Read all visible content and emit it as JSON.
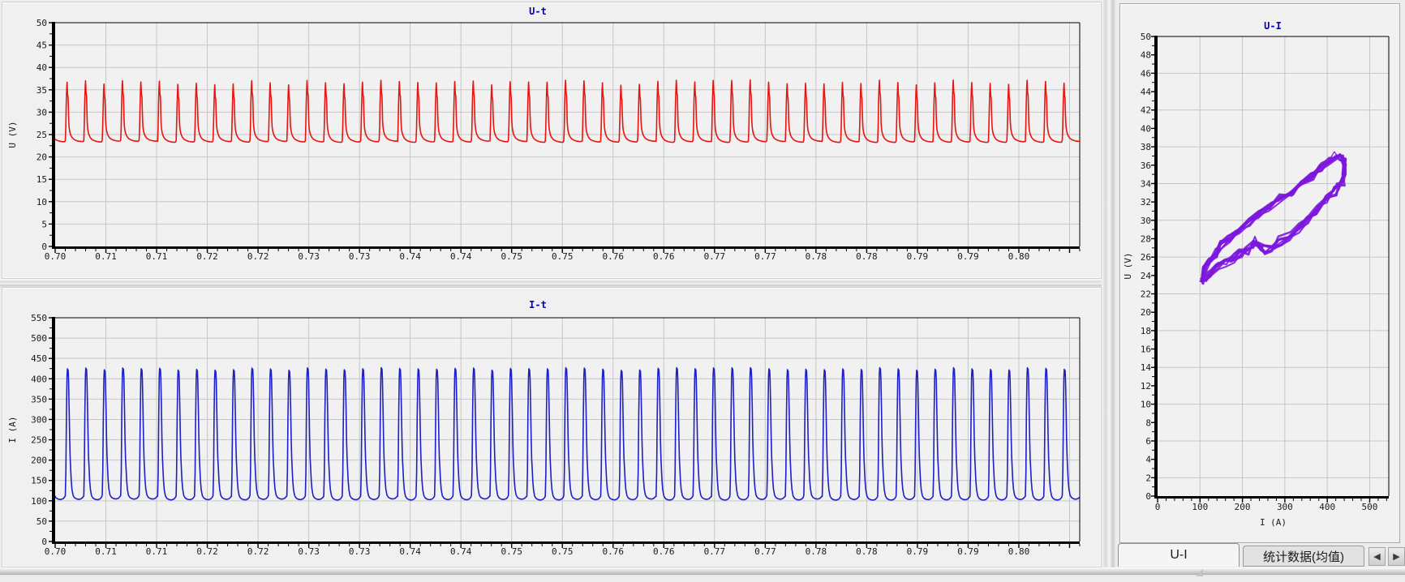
{
  "colors": {
    "window_bg": "#ececec",
    "plot_bg": "#f1f1f1",
    "grid": "#c6c6c6",
    "axis": "#000000",
    "tick_text": "#1a1a1a",
    "title_text": "#0000c8",
    "ut_line": "#e8140f",
    "it_line": "#1f1fc8",
    "ui_line": "#7d17de"
  },
  "tabs": {
    "items": [
      {
        "label": "U-I",
        "active": true
      },
      {
        "label": "统计数据(均值)",
        "active": false
      }
    ],
    "scroll_left_glyph": "◀",
    "scroll_right_glyph": "▶"
  },
  "chart_data": [
    {
      "id": "ut",
      "type": "line",
      "title": "U-t",
      "ylabel": "U (V)",
      "color": "#e8140f",
      "x_range": [
        0.7,
        0.801
      ],
      "x_major_step": 0.005,
      "x_minor_step": 0.001,
      "x_tick_labels": [
        "0.70",
        "0.71",
        "0.71",
        "0.72",
        "0.72",
        "0.73",
        "0.73",
        "0.74",
        "0.74",
        "0.75",
        "0.75",
        "0.76",
        "0.76",
        "0.77",
        "0.77",
        "0.78",
        "0.78",
        "0.79",
        "0.79",
        "0.80"
      ],
      "ylim": [
        0,
        50
      ],
      "y_tick_step": 5,
      "y_minor_step": 2.5,
      "y_tick_labels": [
        "0",
        "5",
        "10",
        "15",
        "20",
        "25",
        "30",
        "35",
        "40",
        "45",
        "50"
      ],
      "grid": true,
      "waveform": {
        "period_s": 0.00182,
        "t_first_rise": 0.701,
        "hi_threshold": 30,
        "peak_jitter_v": 1.2,
        "base_jitter_v": 0.3,
        "cycle_points": [
          [
            0.0,
            23.6
          ],
          [
            0.025,
            26.5
          ],
          [
            0.05,
            31.5
          ],
          [
            0.075,
            35.0
          ],
          [
            0.095,
            36.6
          ],
          [
            0.11,
            35.2
          ],
          [
            0.125,
            33.8
          ],
          [
            0.15,
            33.3
          ],
          [
            0.165,
            31.0
          ],
          [
            0.185,
            28.0
          ],
          [
            0.205,
            26.6
          ],
          [
            0.24,
            25.6
          ],
          [
            0.29,
            24.9
          ],
          [
            0.35,
            24.4
          ],
          [
            0.43,
            24.0
          ],
          [
            0.55,
            23.7
          ],
          [
            0.7,
            23.5
          ],
          [
            0.85,
            23.4
          ],
          [
            0.96,
            23.4
          ]
        ]
      }
    },
    {
      "id": "it",
      "type": "line",
      "title": "I-t",
      "ylabel": "I (A)",
      "color": "#1f1fc8",
      "x_range": [
        0.7,
        0.801
      ],
      "x_major_step": 0.005,
      "x_minor_step": 0.001,
      "x_tick_labels": [
        "0.70",
        "0.71",
        "0.71",
        "0.72",
        "0.72",
        "0.73",
        "0.73",
        "0.74",
        "0.74",
        "0.75",
        "0.75",
        "0.76",
        "0.76",
        "0.77",
        "0.77",
        "0.78",
        "0.78",
        "0.79",
        "0.79",
        "0.80"
      ],
      "ylim": [
        0,
        550
      ],
      "y_tick_step": 50,
      "y_minor_step": 25,
      "y_tick_labels": [
        "0",
        "50",
        "100",
        "150",
        "200",
        "250",
        "300",
        "350",
        "400",
        "450",
        "500",
        "550"
      ],
      "grid": true,
      "waveform": {
        "period_s": 0.00182,
        "t_first_rise": 0.701,
        "hi_threshold": 250,
        "peak_jitter_v": 7,
        "base_jitter_v": 3,
        "cycle_points": [
          [
            0.0,
            112
          ],
          [
            0.03,
            170
          ],
          [
            0.06,
            310
          ],
          [
            0.09,
            405
          ],
          [
            0.112,
            424
          ],
          [
            0.132,
            409
          ],
          [
            0.152,
            421
          ],
          [
            0.175,
            398
          ],
          [
            0.205,
            330
          ],
          [
            0.235,
            252
          ],
          [
            0.262,
            205
          ],
          [
            0.285,
            183
          ],
          [
            0.32,
            150
          ],
          [
            0.36,
            128
          ],
          [
            0.42,
            113
          ],
          [
            0.5,
            107
          ],
          [
            0.62,
            104
          ],
          [
            0.75,
            103
          ],
          [
            0.88,
            105
          ],
          [
            0.96,
            109
          ]
        ]
      }
    },
    {
      "id": "ui",
      "type": "loop",
      "title": "U-I",
      "xlabel": "I (A)",
      "ylabel": "U (V)",
      "color": "#7d17de",
      "xlim": [
        0,
        545
      ],
      "x_tick_step": 100,
      "x_minor_step": 20,
      "x_grid_step": 100,
      "x_tick_labels": [
        "0",
        "100",
        "200",
        "300",
        "400",
        "500"
      ],
      "ylim": [
        0,
        50
      ],
      "y_tick_step": 2,
      "y_minor_step": 1,
      "y_grid_step": 4,
      "y_grid_offset": 2,
      "y_tick_labels": [
        "0",
        "2",
        "4",
        "6",
        "8",
        "10",
        "12",
        "14",
        "16",
        "18",
        "20",
        "22",
        "24",
        "26",
        "28",
        "30",
        "32",
        "34",
        "36",
        "38",
        "40",
        "42",
        "44",
        "46",
        "48",
        "50"
      ],
      "trace_count": 8,
      "jitter_u": 1.1,
      "jitter_i": 10,
      "loop_points": [
        [
          105,
          23.4
        ],
        [
          112,
          24.6
        ],
        [
          122,
          25.6
        ],
        [
          135,
          26.5
        ],
        [
          150,
          27.3
        ],
        [
          168,
          28.0
        ],
        [
          190,
          28.8
        ],
        [
          215,
          29.7
        ],
        [
          240,
          30.6
        ],
        [
          265,
          31.4
        ],
        [
          290,
          32.3
        ],
        [
          315,
          33.2
        ],
        [
          340,
          34.1
        ],
        [
          365,
          34.9
        ],
        [
          385,
          35.7
        ],
        [
          405,
          36.5
        ],
        [
          420,
          37.0
        ],
        [
          432,
          36.9
        ],
        [
          441,
          36.2
        ],
        [
          441,
          35.2
        ],
        [
          436,
          34.3
        ],
        [
          428,
          33.7
        ],
        [
          418,
          33.2
        ],
        [
          400,
          32.2
        ],
        [
          378,
          31.1
        ],
        [
          355,
          30.1
        ],
        [
          332,
          29.2
        ],
        [
          310,
          28.4
        ],
        [
          288,
          27.7
        ],
        [
          268,
          27.1
        ],
        [
          252,
          26.8
        ],
        [
          240,
          27.1
        ],
        [
          230,
          27.7
        ],
        [
          222,
          27.3
        ],
        [
          210,
          26.7
        ],
        [
          195,
          26.3
        ],
        [
          178,
          25.9
        ],
        [
          160,
          25.4
        ],
        [
          142,
          24.9
        ],
        [
          126,
          24.3
        ],
        [
          113,
          23.8
        ],
        [
          105,
          23.4
        ]
      ]
    }
  ]
}
